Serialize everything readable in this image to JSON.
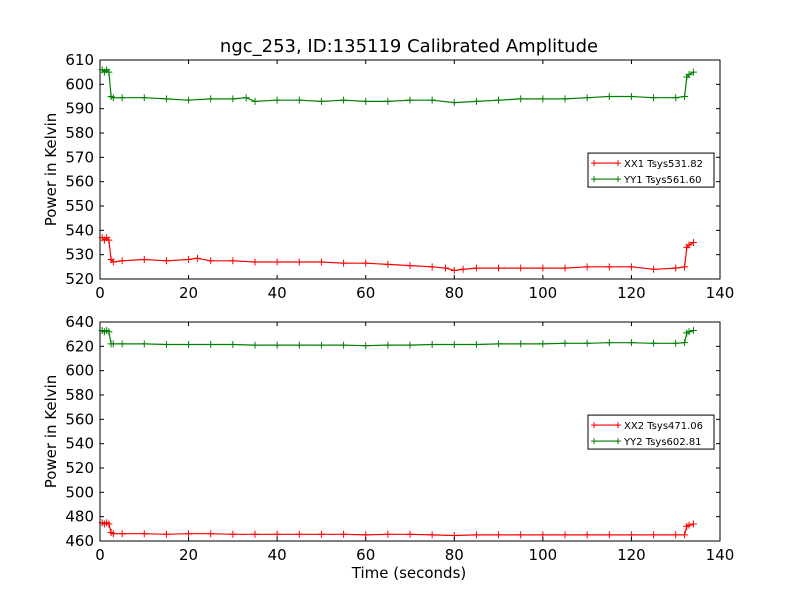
{
  "figure": {
    "title": "ngc_253, ID:135119 Calibrated Amplitude",
    "xlabel": "Time (seconds)"
  },
  "chart_data": [
    {
      "type": "line",
      "title": "ngc_253, ID:135119 Calibrated Amplitude",
      "xlabel": "",
      "ylabel": "Power in Kelvin",
      "xlim": [
        0,
        140
      ],
      "ylim": [
        520,
        610
      ],
      "xticks": [
        "0",
        "20",
        "40",
        "60",
        "80",
        "100",
        "120",
        "140"
      ],
      "yticks": [
        "520",
        "530",
        "540",
        "550",
        "560",
        "570",
        "580",
        "590",
        "600",
        "610"
      ],
      "legend_position": "center-right",
      "grid": false,
      "series": [
        {
          "name": "XX1 Tsys531.82",
          "color": "#ff0000",
          "marker": "+",
          "x": [
            0.5,
            1,
            1.5,
            2,
            2.5,
            3,
            5,
            10,
            15,
            20,
            22,
            25,
            30,
            35,
            40,
            45,
            50,
            55,
            60,
            65,
            70,
            75,
            78,
            80,
            82,
            85,
            90,
            95,
            100,
            105,
            110,
            115,
            120,
            125,
            130,
            132,
            132.5,
            133,
            134
          ],
          "values": [
            537,
            536,
            537,
            536,
            528,
            527,
            527.5,
            528,
            527.5,
            528,
            528.5,
            527.5,
            527.5,
            527,
            527,
            527,
            527,
            526.5,
            526.5,
            526,
            525.5,
            525,
            524.5,
            523.5,
            524,
            524.5,
            524.5,
            524.5,
            524.5,
            524.5,
            525,
            525,
            525,
            524,
            524.5,
            525,
            533,
            534,
            535
          ]
        },
        {
          "name": "YY1 Tsys561.60",
          "color": "#008000",
          "marker": "+",
          "x": [
            0.5,
            1,
            1.5,
            2,
            2.5,
            3,
            5,
            10,
            15,
            20,
            25,
            30,
            33,
            35,
            40,
            45,
            50,
            55,
            60,
            65,
            70,
            75,
            80,
            85,
            90,
            95,
            100,
            105,
            110,
            115,
            120,
            125,
            130,
            132,
            132.5,
            133,
            134
          ],
          "values": [
            606,
            605,
            606,
            605,
            595,
            594.5,
            594.5,
            594.5,
            594,
            593.5,
            594,
            594,
            594.5,
            593,
            593.5,
            593.5,
            593,
            593.5,
            593,
            593,
            593.5,
            593.5,
            592.5,
            593,
            593.5,
            594,
            594,
            594,
            594.5,
            595,
            595,
            594.5,
            594.5,
            595,
            603,
            604,
            605
          ]
        }
      ]
    },
    {
      "type": "line",
      "title": "",
      "xlabel": "Time (seconds)",
      "ylabel": "Power in Kelvin",
      "xlim": [
        0,
        140
      ],
      "ylim": [
        460,
        640
      ],
      "xticks": [
        "0",
        "20",
        "40",
        "60",
        "80",
        "100",
        "120",
        "140"
      ],
      "yticks": [
        "460",
        "480",
        "500",
        "520",
        "540",
        "560",
        "580",
        "600",
        "620",
        "640"
      ],
      "legend_position": "center-right",
      "grid": false,
      "series": [
        {
          "name": "XX2 Tsys471.06",
          "color": "#ff0000",
          "marker": "+",
          "x": [
            0.5,
            1,
            1.5,
            2,
            2.5,
            3,
            5,
            10,
            15,
            20,
            25,
            30,
            35,
            40,
            45,
            50,
            55,
            60,
            65,
            70,
            75,
            80,
            85,
            90,
            95,
            100,
            105,
            110,
            115,
            120,
            125,
            130,
            132,
            132.5,
            133,
            134
          ],
          "values": [
            475,
            474,
            475,
            474,
            467,
            466,
            466,
            466,
            465.5,
            466,
            466,
            465.5,
            465.5,
            465.5,
            465.5,
            465.5,
            465.5,
            465,
            465.5,
            465.5,
            465,
            464.5,
            465,
            465,
            465,
            465,
            465,
            465,
            465,
            465,
            465,
            465,
            465,
            472,
            473,
            474
          ]
        },
        {
          "name": "YY2 Tsys602.81",
          "color": "#008000",
          "marker": "+",
          "x": [
            0.5,
            1,
            1.5,
            2,
            2.5,
            3,
            5,
            10,
            15,
            20,
            25,
            30,
            35,
            40,
            45,
            50,
            55,
            60,
            65,
            70,
            75,
            80,
            85,
            90,
            95,
            100,
            105,
            110,
            115,
            120,
            125,
            130,
            132,
            132.5,
            133,
            134
          ],
          "values": [
            633,
            632,
            633,
            632,
            622,
            622,
            622,
            622,
            621.5,
            621.5,
            621.5,
            621.5,
            621,
            621,
            621,
            621,
            621,
            620.5,
            621,
            621,
            621.5,
            621.5,
            621.5,
            622,
            622,
            622,
            622.5,
            622.5,
            623,
            623,
            622.5,
            622.5,
            623,
            631,
            632,
            633
          ]
        }
      ]
    }
  ]
}
